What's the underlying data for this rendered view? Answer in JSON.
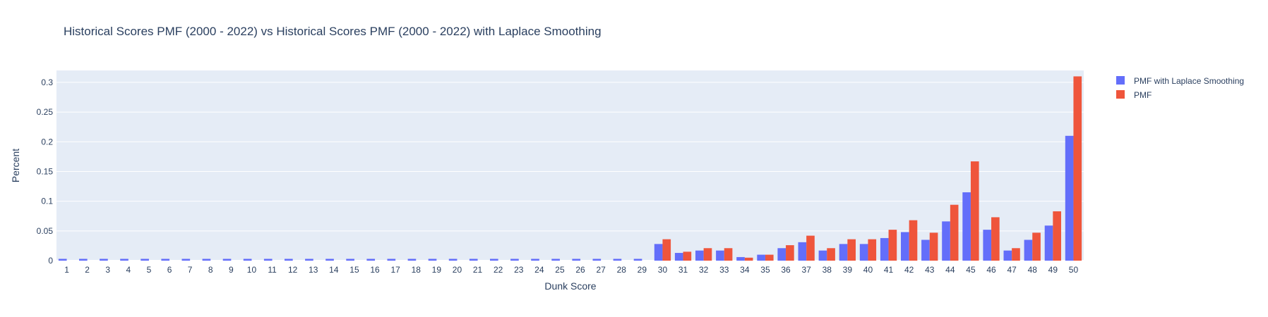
{
  "chart_data": {
    "type": "bar",
    "title": "Historical Scores PMF (2000 - 2022) vs Historical Scores PMF (2000 - 2022) with Laplace Smoothing",
    "xlabel": "Dunk Score",
    "ylabel": "Percent",
    "ylim": [
      0,
      0.32
    ],
    "yticks": [
      0,
      0.05,
      0.1,
      0.15,
      0.2,
      0.25,
      0.3
    ],
    "ytick_labels": [
      "0",
      "0.05",
      "0.1",
      "0.15",
      "0.2",
      "0.25",
      "0.3"
    ],
    "grid": true,
    "legend_position": "top-right",
    "categories": [
      "1",
      "2",
      "3",
      "4",
      "5",
      "6",
      "7",
      "8",
      "9",
      "10",
      "11",
      "12",
      "13",
      "14",
      "15",
      "16",
      "17",
      "18",
      "19",
      "20",
      "21",
      "22",
      "23",
      "24",
      "25",
      "26",
      "27",
      "28",
      "29",
      "30",
      "31",
      "32",
      "33",
      "34",
      "35",
      "36",
      "37",
      "38",
      "39",
      "40",
      "41",
      "42",
      "43",
      "44",
      "45",
      "46",
      "47",
      "48",
      "49",
      "50"
    ],
    "series": [
      {
        "name": "PMF with Laplace Smoothing",
        "color": "#636efa",
        "values": [
          0.003,
          0.003,
          0.003,
          0.003,
          0.003,
          0.003,
          0.003,
          0.003,
          0.003,
          0.003,
          0.003,
          0.003,
          0.003,
          0.003,
          0.003,
          0.003,
          0.003,
          0.003,
          0.003,
          0.003,
          0.003,
          0.003,
          0.003,
          0.003,
          0.003,
          0.003,
          0.003,
          0.003,
          0.003,
          0.028,
          0.013,
          0.017,
          0.017,
          0.006,
          0.01,
          0.021,
          0.031,
          0.017,
          0.028,
          0.028,
          0.038,
          0.048,
          0.035,
          0.066,
          0.115,
          0.052,
          0.017,
          0.035,
          0.059,
          0.21
        ]
      },
      {
        "name": "PMF",
        "color": "#ef553b",
        "values": [
          0,
          0,
          0,
          0,
          0,
          0,
          0,
          0,
          0,
          0,
          0,
          0,
          0,
          0,
          0,
          0,
          0,
          0,
          0,
          0,
          0,
          0,
          0,
          0,
          0,
          0,
          0,
          0,
          0,
          0.036,
          0.015,
          0.021,
          0.021,
          0.005,
          0.01,
          0.026,
          0.042,
          0.021,
          0.036,
          0.036,
          0.052,
          0.068,
          0.047,
          0.094,
          0.167,
          0.073,
          0.021,
          0.047,
          0.083,
          0.31
        ]
      }
    ]
  }
}
